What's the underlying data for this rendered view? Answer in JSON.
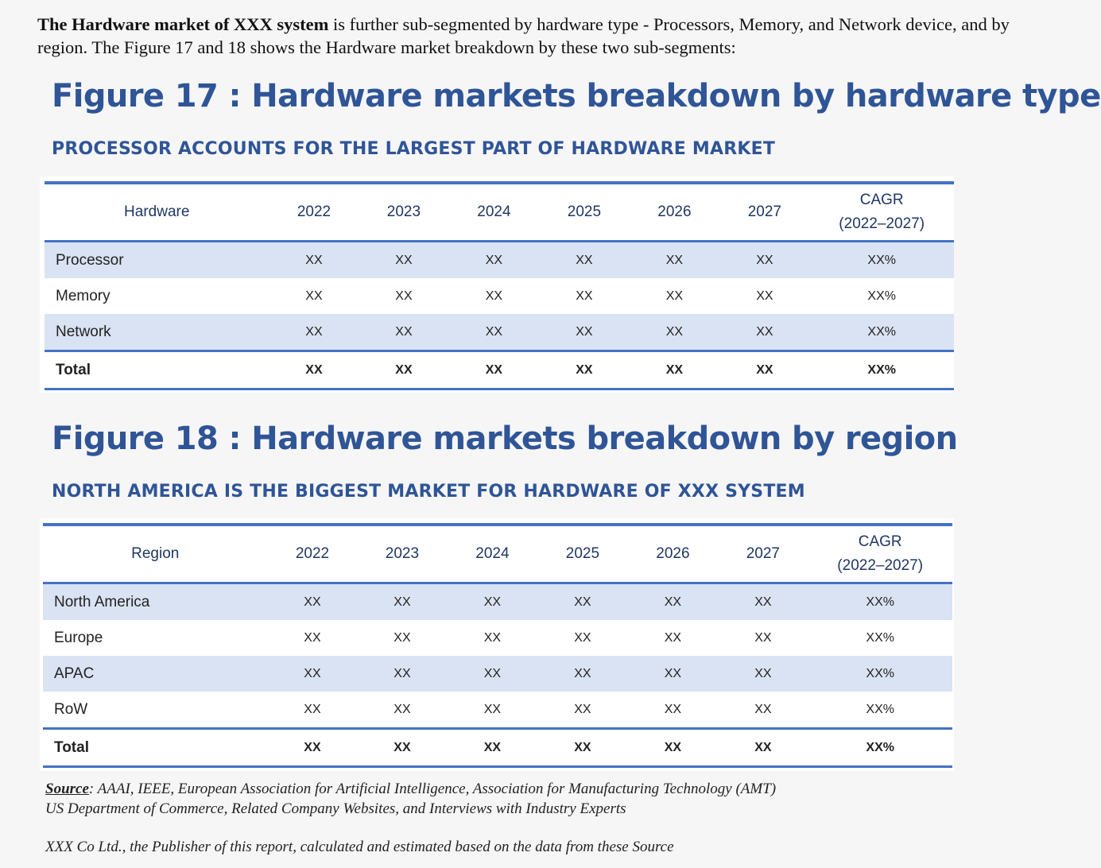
{
  "intro": {
    "bold_lead": "The Hardware market of XXX system",
    "text": " is further sub-segmented by hardware type - Processors, Memory, and Network device, and by region. The Figure 17 and 18 shows the Hardware market breakdown by these two sub-segments:"
  },
  "figure17": {
    "title": "Figure 17 : Hardware markets breakdown by hardware type",
    "subtitle": "PROCESSOR ACCOUNTS FOR THE LARGEST PART OF HARDWARE MARKET",
    "headers": [
      "Hardware",
      "2022",
      "2023",
      "2024",
      "2025",
      "2026",
      "2027"
    ],
    "cagr_header": [
      "CAGR",
      "(2022–2027)"
    ],
    "rows": [
      {
        "label": "Processor",
        "values": [
          "XX",
          "XX",
          "XX",
          "XX",
          "XX",
          "XX",
          "XX%"
        ]
      },
      {
        "label": "Memory",
        "values": [
          "XX",
          "XX",
          "XX",
          "XX",
          "XX",
          "XX",
          "XX%"
        ]
      },
      {
        "label": "Network",
        "values": [
          "XX",
          "XX",
          "XX",
          "XX",
          "XX",
          "XX",
          "XX%"
        ]
      }
    ],
    "total": {
      "label": "Total",
      "values": [
        "XX",
        "XX",
        "XX",
        "XX",
        "XX",
        "XX",
        "XX%"
      ]
    }
  },
  "figure18": {
    "title": "Figure 18 : Hardware markets breakdown by region",
    "subtitle": "NORTH AMERICA IS THE BIGGEST MARKET FOR HARDWARE OF XXX SYSTEM",
    "headers": [
      "Region",
      "2022",
      "2023",
      "2024",
      "2025",
      "2026",
      "2027"
    ],
    "cagr_header": [
      "CAGR",
      "(2022–2027)"
    ],
    "rows": [
      {
        "label": "North America",
        "values": [
          "XX",
          "XX",
          "XX",
          "XX",
          "XX",
          "XX",
          "XX%"
        ]
      },
      {
        "label": "Europe",
        "values": [
          "XX",
          "XX",
          "XX",
          "XX",
          "XX",
          "XX",
          "XX%"
        ]
      },
      {
        "label": "APAC",
        "values": [
          "XX",
          "XX",
          "XX",
          "XX",
          "XX",
          "XX",
          "XX%"
        ]
      },
      {
        "label": "RoW",
        "values": [
          "XX",
          "XX",
          "XX",
          "XX",
          "XX",
          "XX",
          "XX%"
        ]
      }
    ],
    "total": {
      "label": "Total",
      "values": [
        "XX",
        "XX",
        "XX",
        "XX",
        "XX",
        "XX",
        "XX%"
      ]
    }
  },
  "source": {
    "label": "Source",
    "line1": ": AAAI,  IEEE, European Association for Artificial Intelligence, Association for Manufacturing Technology (AMT)",
    "line2": "US Department of Commerce, Related Company Websites, and Interviews with Industry Experts"
  },
  "note": "XXX Co Ltd., the Publisher of this report, calculated and estimated based on the data from these Source",
  "colors": {
    "accent": "#2f5597",
    "rule": "#4472c4",
    "shade": "#dae3f3"
  }
}
